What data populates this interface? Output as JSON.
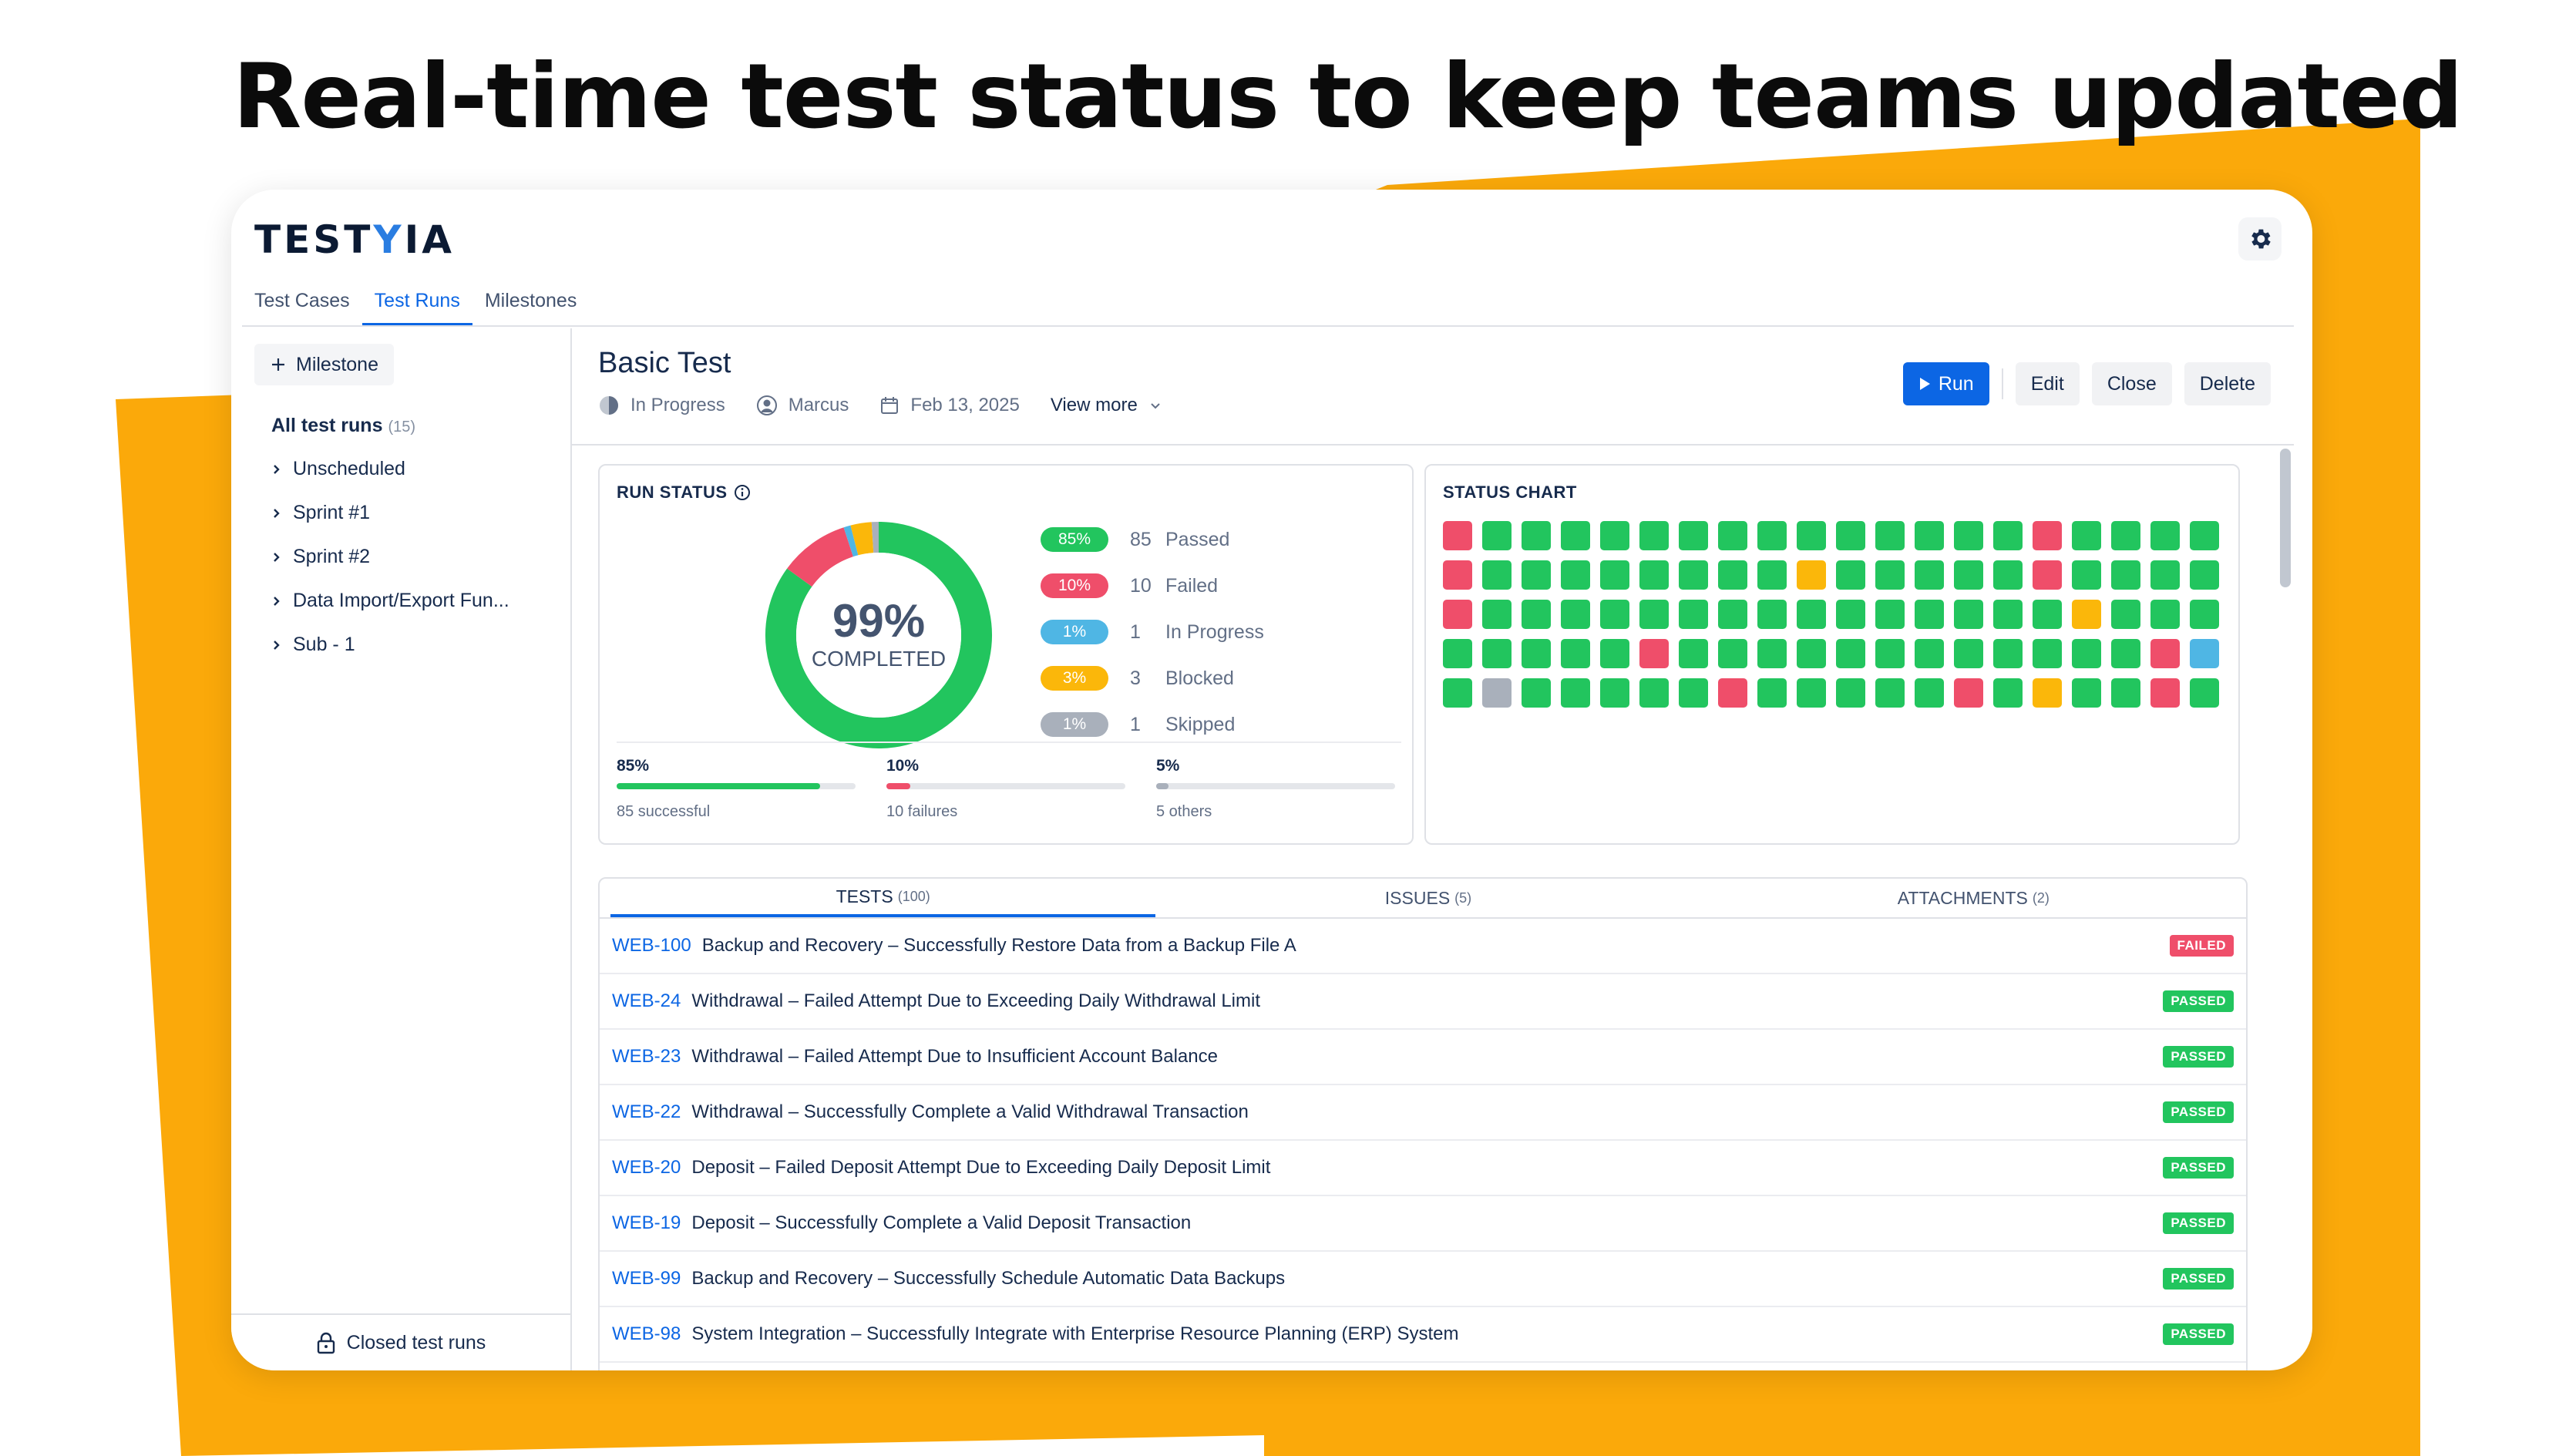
{
  "headline": "Real-time test status to keep teams updated",
  "colors": {
    "accent": "#0c66e4",
    "passed": "#22c55e",
    "failed": "#ef4e6a",
    "in_progress": "#4fb6e4",
    "blocked": "#fbb70a",
    "skipped": "#a9b0bb",
    "banner": "#fba90a"
  },
  "logo": {
    "prefix": "TEST",
    "accent": "Y",
    "suffix": "IA"
  },
  "nav": {
    "tabs": [
      "Test Cases",
      "Test Runs",
      "Milestones"
    ],
    "active": "Test Runs"
  },
  "sidebar": {
    "milestone_button": "Milestone",
    "all_runs_label": "All test runs",
    "all_runs_count": "(15)",
    "items": [
      "Unscheduled",
      "Sprint #1",
      "Sprint #2",
      "Data Import/Export Fun...",
      "Sub - 1"
    ],
    "closed_label": "Closed test runs"
  },
  "run": {
    "title": "Basic Test",
    "status": "In Progress",
    "assignee": "Marcus",
    "date": "Feb 13, 2025",
    "view_more": "View more"
  },
  "actions": {
    "run": "Run",
    "edit": "Edit",
    "close": "Close",
    "delete": "Delete"
  },
  "run_status": {
    "title": "RUN STATUS",
    "percent": "99%",
    "completed_label": "COMPLETED",
    "legend": [
      {
        "pct": "85%",
        "count": "85",
        "label": "Passed",
        "color": "#22c55e",
        "value": 85
      },
      {
        "pct": "10%",
        "count": "10",
        "label": "Failed",
        "color": "#ef4e6a",
        "value": 10
      },
      {
        "pct": "1%",
        "count": "1",
        "label": "In Progress",
        "color": "#4fb6e4",
        "value": 1
      },
      {
        "pct": "3%",
        "count": "3",
        "label": "Blocked",
        "color": "#fbb70a",
        "value": 3
      },
      {
        "pct": "1%",
        "count": "1",
        "label": "Skipped",
        "color": "#a9b0bb",
        "value": 1
      }
    ],
    "stats": [
      {
        "pct": "85%",
        "label": "85 successful",
        "fill": 0.85,
        "color": "#22c55e"
      },
      {
        "pct": "10%",
        "label": "10 failures",
        "fill": 0.1,
        "color": "#ef4e6a"
      },
      {
        "pct": "5%",
        "label": "5 others",
        "fill": 0.05,
        "color": "#a9b0bb"
      }
    ]
  },
  "status_chart": {
    "title": "STATUS CHART",
    "rows": [
      "FPPPPPPPPPPPPPPFPPPP",
      "FPPPPPPPPBPPPPPFPPPP",
      "FPPPPPPPPPPPPPPPBPPP",
      "PPPPPFPPPPPPPPPPPPFI",
      "PSPPPPPFPPPPPFPBPPFP"
    ]
  },
  "tabs": [
    {
      "label": "TESTS",
      "count": "(100)"
    },
    {
      "label": "ISSUES",
      "count": "(5)"
    },
    {
      "label": "ATTACHMENTS",
      "count": "(2)"
    }
  ],
  "tests": [
    {
      "key": "WEB-100",
      "title": "Backup and Recovery – Successfully Restore Data from a Backup File A",
      "status": "FAILED"
    },
    {
      "key": "WEB-24",
      "title": "Withdrawal – Failed Attempt Due to Exceeding Daily Withdrawal Limit",
      "status": "PASSED"
    },
    {
      "key": "WEB-23",
      "title": "Withdrawal – Failed Attempt Due to Insufficient Account Balance",
      "status": "PASSED"
    },
    {
      "key": "WEB-22",
      "title": "Withdrawal – Successfully Complete a Valid Withdrawal Transaction",
      "status": "PASSED"
    },
    {
      "key": "WEB-20",
      "title": "Deposit – Failed Deposit Attempt Due to Exceeding Daily Deposit Limit",
      "status": "PASSED"
    },
    {
      "key": "WEB-19",
      "title": "Deposit – Successfully Complete a Valid Deposit Transaction",
      "status": "PASSED"
    },
    {
      "key": "WEB-99",
      "title": "Backup and Recovery – Successfully Schedule Automatic Data Backups",
      "status": "PASSED"
    },
    {
      "key": "WEB-98",
      "title": "System Integration – Successfully Integrate with Enterprise Resource Planning (ERP) System",
      "status": "PASSED"
    }
  ]
}
